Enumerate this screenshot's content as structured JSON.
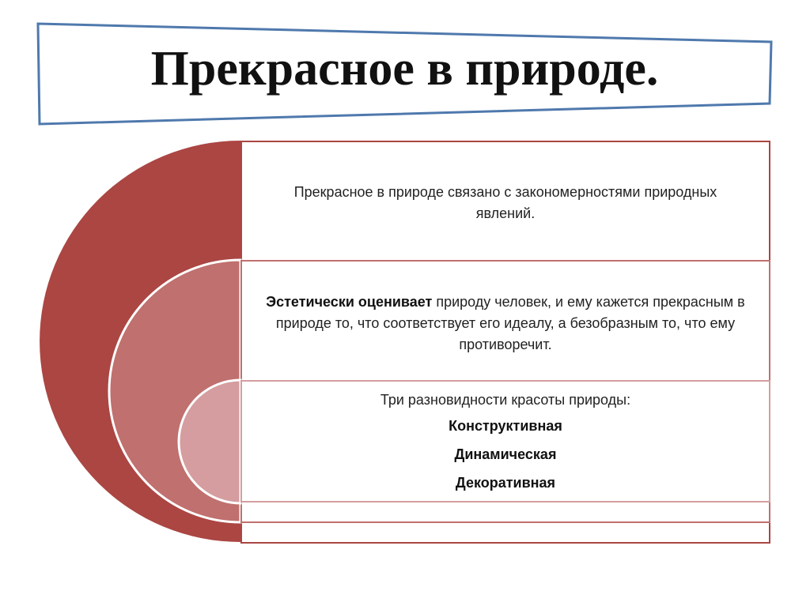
{
  "title": "Прекрасное в природе.",
  "colors": {
    "title_border": "#4f79ad",
    "outer": "#ab4643",
    "middle": "#c0706e",
    "inner": "#d59d9f"
  },
  "blocks": [
    {
      "text": "Прекрасное в природе связано с закономерностями природных явлений."
    },
    {
      "bold": "Эстетически оценивает",
      "text": " природу человек, и ему кажется прекрасным в природе то, что соответствует его идеалу, а безобразным то, что ему противоречит."
    },
    {
      "text": "Три разновидности красоты природы:",
      "items": [
        "Конструктивная",
        "Динамическая",
        "Декоративная"
      ]
    }
  ]
}
